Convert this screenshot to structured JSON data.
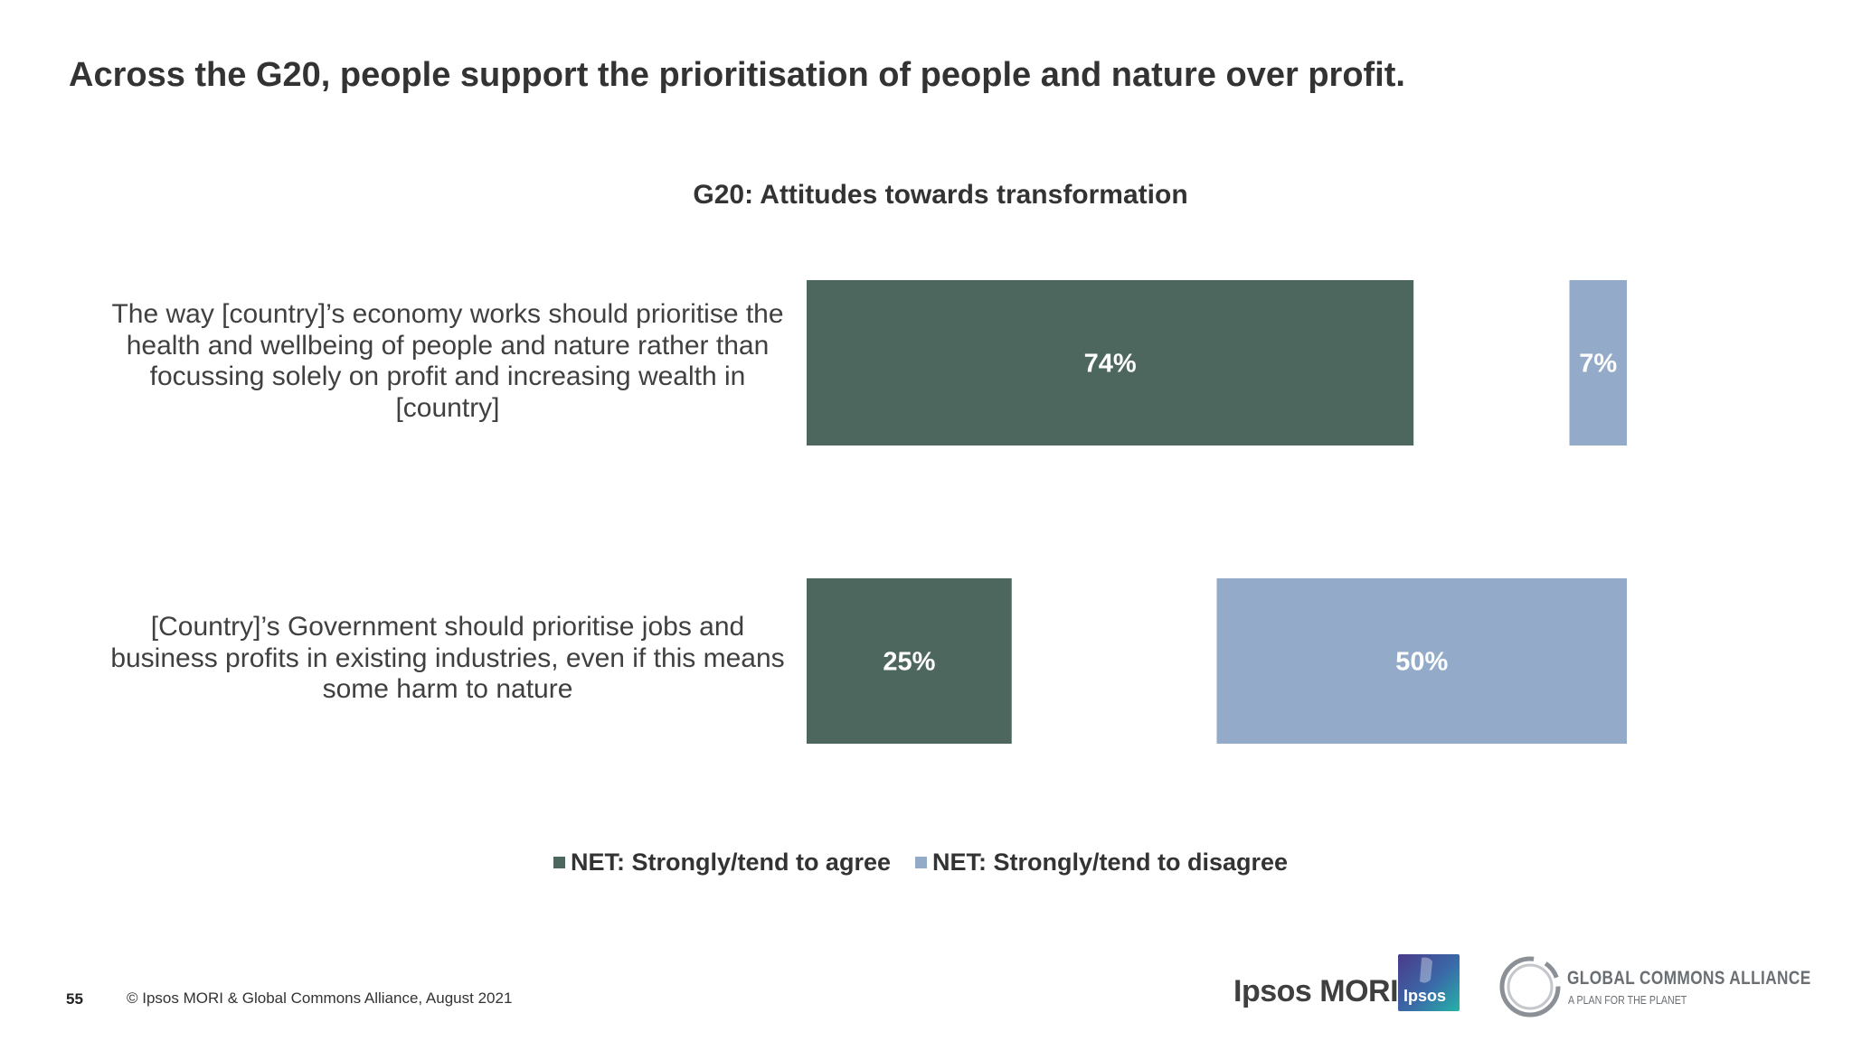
{
  "slide": {
    "headline": "Across the G20, people support the prioritisation of people and nature over profit.",
    "page_number": "55",
    "copyright": "© Ipsos MORI & Global Commons Alliance, August 2021"
  },
  "logos": {
    "ipsos_mori": "Ipsos MORI",
    "ipsos_box": "Ipsos",
    "gca_name": "GLOBAL COMMONS ALLIANCE",
    "gca_tagline": "A PLAN FOR THE PLANET"
  },
  "colors": {
    "agree": "#4e675e",
    "disagree": "#93abc9"
  },
  "chart_data": {
    "type": "bar",
    "orientation": "horizontal",
    "title": "G20: Attitudes towards transformation",
    "categories": [
      "The way [country]’s economy works should prioritise the health and wellbeing of people and nature rather than focussing solely on profit and increasing wealth in [country]",
      "[Country]’s Government should prioritise jobs and business profits in existing industries, even if this means some harm to nature"
    ],
    "series": [
      {
        "name": "NET: Strongly/tend to agree",
        "values": [
          74,
          25
        ],
        "labels": [
          "74%",
          "25%"
        ],
        "color": "#4e675e"
      },
      {
        "name": "NET: Strongly/tend to disagree",
        "values": [
          7,
          50
        ],
        "labels": [
          "7%",
          "50%"
        ],
        "color": "#93abc9"
      }
    ],
    "xlim": [
      0,
      100
    ],
    "legend_position": "bottom",
    "grid": false
  }
}
